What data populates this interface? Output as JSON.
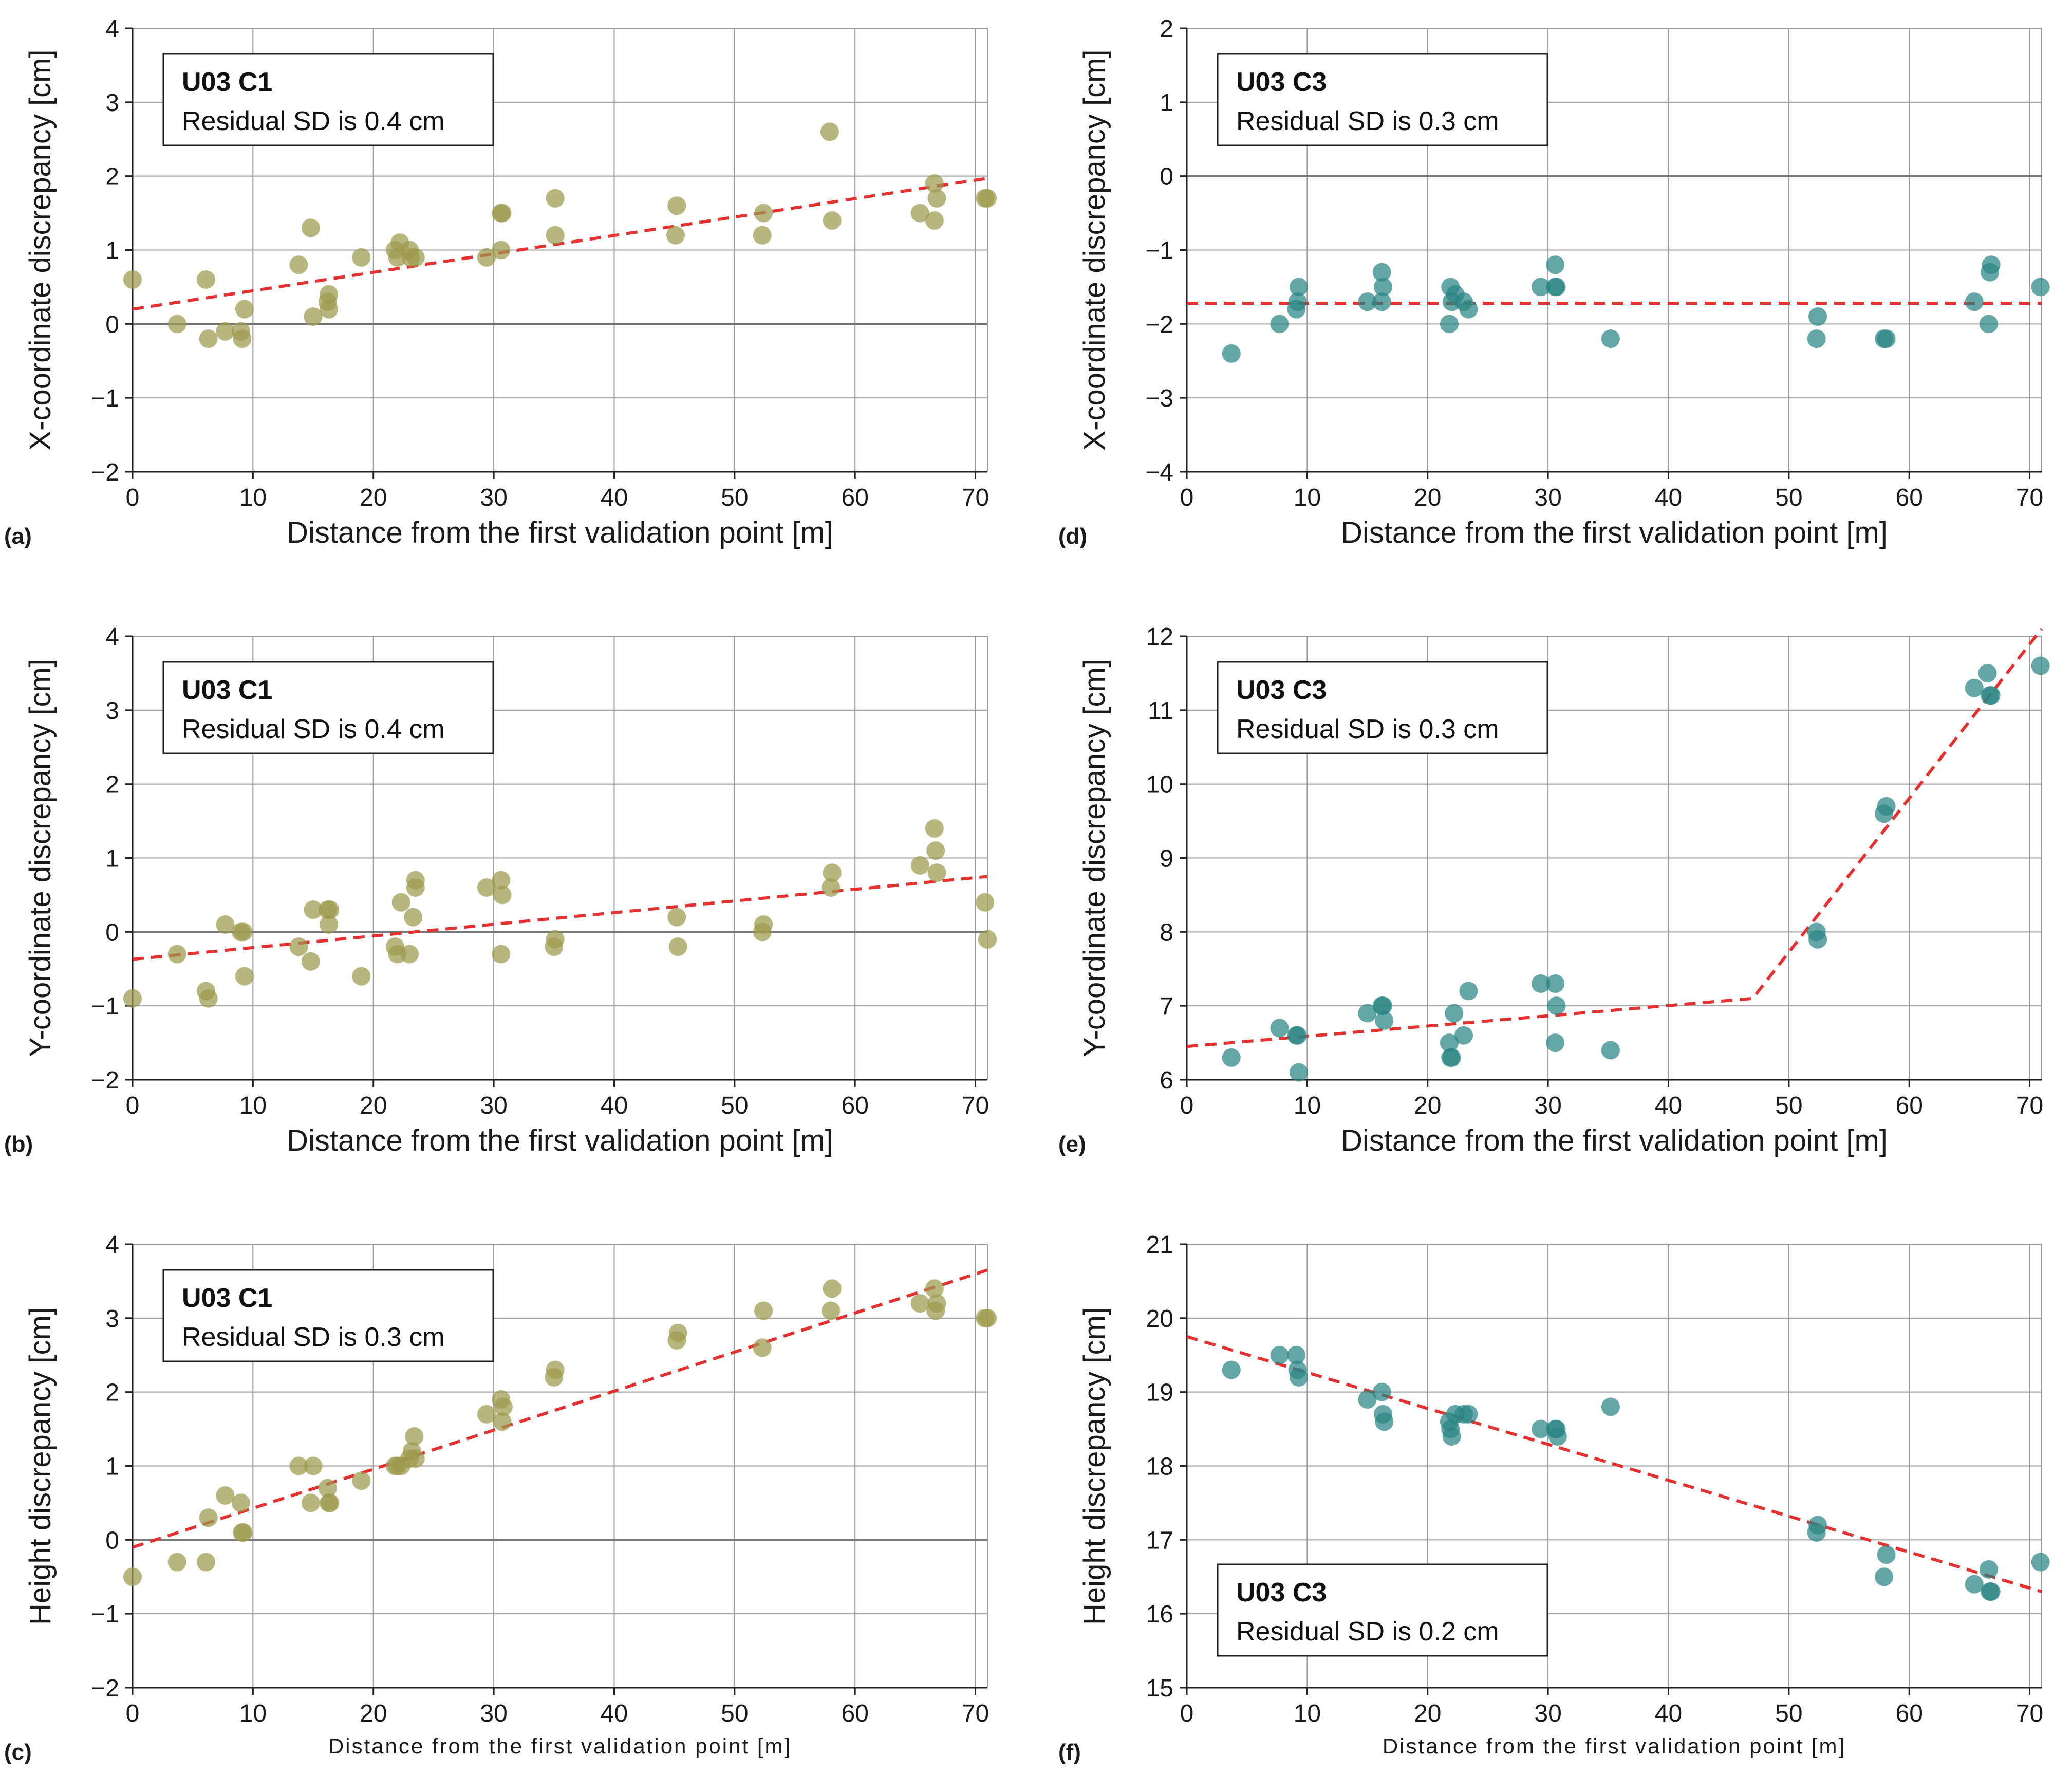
{
  "colors": {
    "olive": "#9c9a4e",
    "teal": "#2a8583",
    "fit": "#e53030"
  },
  "chart_data": [
    {
      "type": "scatter",
      "panel": "(a)",
      "box_title": "U03 C1",
      "box_sub": "Residual SD is 0.4 cm",
      "box_pos": "top-left",
      "xlabel": "Distance from the first validation point [m]",
      "ylabel": "X-coordinate discrepancy [cm]",
      "xlim": [
        0,
        71
      ],
      "ylim": [
        -2,
        4
      ],
      "xticks": [
        0,
        10,
        20,
        30,
        40,
        50,
        60,
        70
      ],
      "yticks": [
        -2,
        -1,
        0,
        1,
        2,
        3,
        4
      ],
      "color": "olive",
      "zero_line": true,
      "small_xlabel": false,
      "fit": [
        [
          0,
          0.2
        ],
        [
          71,
          1.97
        ]
      ],
      "points": [
        [
          0,
          0.6
        ],
        [
          3.7,
          0
        ],
        [
          6.1,
          0.6
        ],
        [
          6.3,
          -0.2
        ],
        [
          7.7,
          -0.1
        ],
        [
          9,
          -0.1
        ],
        [
          9.1,
          -0.2
        ],
        [
          9.3,
          0.2
        ],
        [
          13.8,
          0.8
        ],
        [
          14.8,
          1.3
        ],
        [
          15,
          0.1
        ],
        [
          16.3,
          0.2
        ],
        [
          16.3,
          0.4
        ],
        [
          16.2,
          0.3
        ],
        [
          19,
          0.9
        ],
        [
          21.8,
          1
        ],
        [
          22,
          0.9
        ],
        [
          22.2,
          1.1
        ],
        [
          23,
          1
        ],
        [
          23.1,
          0.9
        ],
        [
          23.5,
          0.9
        ],
        [
          29.4,
          0.9
        ],
        [
          30.6,
          1.5
        ],
        [
          30.7,
          1.5
        ],
        [
          30.6,
          1
        ],
        [
          35.1,
          1.2
        ],
        [
          35.1,
          1.7
        ],
        [
          45.2,
          1.6
        ],
        [
          45.1,
          1.2
        ],
        [
          52.4,
          1.5
        ],
        [
          52.3,
          1.2
        ],
        [
          57.9,
          2.6
        ],
        [
          58.1,
          1.4
        ],
        [
          65.4,
          1.5
        ],
        [
          66.6,
          1.9
        ],
        [
          66.8,
          1.7
        ],
        [
          66.6,
          1.4
        ],
        [
          70.8,
          1.7
        ],
        [
          71,
          1.7
        ]
      ]
    },
    {
      "type": "scatter",
      "panel": "(d)",
      "box_title": "U03 C3",
      "box_sub": "Residual SD is 0.3 cm",
      "box_pos": "top-left",
      "xlabel": "Distance from the first validation point [m]",
      "ylabel": "X-coordinate discrepancy [cm]",
      "xlim": [
        0,
        71
      ],
      "ylim": [
        -4,
        2
      ],
      "xticks": [
        0,
        10,
        20,
        30,
        40,
        50,
        60,
        70
      ],
      "yticks": [
        -4,
        -3,
        -2,
        -1,
        0,
        1,
        2
      ],
      "color": "teal",
      "zero_line": true,
      "small_xlabel": false,
      "fit": [
        [
          0,
          -1.72
        ],
        [
          71,
          -1.72
        ]
      ],
      "points": [
        [
          3.7,
          -2.4
        ],
        [
          7.7,
          -2
        ],
        [
          9.1,
          -1.8
        ],
        [
          9.3,
          -1.5
        ],
        [
          9.2,
          -1.7
        ],
        [
          15,
          -1.7
        ],
        [
          16.2,
          -1.3
        ],
        [
          16.3,
          -1.5
        ],
        [
          16.2,
          -1.7
        ],
        [
          21.8,
          -2
        ],
        [
          21.9,
          -1.5
        ],
        [
          22,
          -1.7
        ],
        [
          22.3,
          -1.6
        ],
        [
          23,
          -1.7
        ],
        [
          23.4,
          -1.8
        ],
        [
          29.4,
          -1.5
        ],
        [
          30.6,
          -1.5
        ],
        [
          30.7,
          -1.5
        ],
        [
          30.6,
          -1.2
        ],
        [
          35.2,
          -2.2
        ],
        [
          52.3,
          -2.2
        ],
        [
          52.4,
          -1.9
        ],
        [
          57.9,
          -2.2
        ],
        [
          58.1,
          -2.2
        ],
        [
          65.4,
          -1.7
        ],
        [
          66.6,
          -2
        ],
        [
          66.7,
          -1.3
        ],
        [
          66.8,
          -1.2
        ],
        [
          70.9,
          -1.5
        ]
      ]
    },
    {
      "type": "scatter",
      "panel": "(b)",
      "box_title": "U03 C1",
      "box_sub": "Residual SD is 0.4 cm",
      "box_pos": "top-left",
      "xlabel": "Distance from the first validation point [m]",
      "ylabel": "Y-coordinate discrepancy [cm]",
      "xlim": [
        0,
        71
      ],
      "ylim": [
        -2,
        4
      ],
      "xticks": [
        0,
        10,
        20,
        30,
        40,
        50,
        60,
        70
      ],
      "yticks": [
        -2,
        -1,
        0,
        1,
        2,
        3,
        4
      ],
      "color": "olive",
      "zero_line": true,
      "small_xlabel": false,
      "fit": [
        [
          0,
          -0.37
        ],
        [
          71,
          0.75
        ]
      ],
      "points": [
        [
          0,
          -0.9
        ],
        [
          3.7,
          -0.3
        ],
        [
          6.1,
          -0.8
        ],
        [
          6.3,
          -0.9
        ],
        [
          7.7,
          0.1
        ],
        [
          9,
          0
        ],
        [
          9.2,
          0
        ],
        [
          9.3,
          -0.6
        ],
        [
          13.8,
          -0.2
        ],
        [
          14.8,
          -0.4
        ],
        [
          15,
          0.3
        ],
        [
          16.2,
          0.3
        ],
        [
          16.4,
          0.3
        ],
        [
          16.3,
          0.1
        ],
        [
          19,
          -0.6
        ],
        [
          21.8,
          -0.2
        ],
        [
          22,
          -0.3
        ],
        [
          22.3,
          0.4
        ],
        [
          23,
          -0.3
        ],
        [
          23.3,
          0.2
        ],
        [
          23.5,
          0.6
        ],
        [
          23.5,
          0.7
        ],
        [
          29.4,
          0.6
        ],
        [
          30.6,
          0.7
        ],
        [
          30.7,
          0.5
        ],
        [
          30.6,
          -0.3
        ],
        [
          35,
          -0.2
        ],
        [
          35.1,
          -0.1
        ],
        [
          45.2,
          0.2
        ],
        [
          45.3,
          -0.2
        ],
        [
          52.4,
          0.1
        ],
        [
          52.3,
          0
        ],
        [
          58.1,
          0.8
        ],
        [
          58,
          0.6
        ],
        [
          65.4,
          0.9
        ],
        [
          66.6,
          1.4
        ],
        [
          66.7,
          1.1
        ],
        [
          66.8,
          0.8
        ],
        [
          70.8,
          0.4
        ],
        [
          71,
          -0.1
        ]
      ]
    },
    {
      "type": "scatter",
      "panel": "(e)",
      "box_title": "U03 C3",
      "box_sub": "Residual SD is 0.3 cm",
      "box_pos": "top-left",
      "xlabel": "Distance from the first validation point [m]",
      "ylabel": "Y-coordinate discrepancy [cm]",
      "xlim": [
        0,
        71
      ],
      "ylim": [
        6,
        12
      ],
      "xticks": [
        0,
        10,
        20,
        30,
        40,
        50,
        60,
        70
      ],
      "yticks": [
        6,
        7,
        8,
        9,
        10,
        11,
        12
      ],
      "color": "teal",
      "zero_line": false,
      "small_xlabel": false,
      "fit": [
        [
          0,
          6.45
        ],
        [
          47,
          7.1
        ],
        [
          71,
          12.1
        ]
      ],
      "points": [
        [
          3.7,
          6.3
        ],
        [
          7.7,
          6.7
        ],
        [
          9.1,
          6.6
        ],
        [
          9.2,
          6.6
        ],
        [
          9.3,
          6.1
        ],
        [
          15,
          6.9
        ],
        [
          16.2,
          7
        ],
        [
          16.3,
          7
        ],
        [
          16.4,
          6.8
        ],
        [
          21.8,
          6.5
        ],
        [
          21.9,
          6.3
        ],
        [
          22,
          6.3
        ],
        [
          22.2,
          6.9
        ],
        [
          23,
          6.6
        ],
        [
          23.4,
          7.2
        ],
        [
          29.4,
          7.3
        ],
        [
          30.6,
          7.3
        ],
        [
          30.7,
          7
        ],
        [
          30.6,
          6.5
        ],
        [
          35.2,
          6.4
        ],
        [
          52.3,
          8
        ],
        [
          52.4,
          7.9
        ],
        [
          57.9,
          9.6
        ],
        [
          58.1,
          9.7
        ],
        [
          65.4,
          11.3
        ],
        [
          66.5,
          11.5
        ],
        [
          66.7,
          11.2
        ],
        [
          66.8,
          11.2
        ],
        [
          70.9,
          11.6
        ]
      ]
    },
    {
      "type": "scatter",
      "panel": "(c)",
      "box_title": "U03 C1",
      "box_sub": "Residual SD is 0.3 cm",
      "box_pos": "top-left",
      "xlabel": "Distance from the first validation point [m]",
      "ylabel": "Height discrepancy [cm]",
      "xlim": [
        0,
        71
      ],
      "ylim": [
        -2,
        4
      ],
      "xticks": [
        0,
        10,
        20,
        30,
        40,
        50,
        60,
        70
      ],
      "yticks": [
        -2,
        -1,
        0,
        1,
        2,
        3,
        4
      ],
      "color": "olive",
      "zero_line": true,
      "small_xlabel": true,
      "fit": [
        [
          0,
          -0.1
        ],
        [
          71,
          3.65
        ]
      ],
      "points": [
        [
          0,
          -0.5
        ],
        [
          3.7,
          -0.3
        ],
        [
          6.1,
          -0.3
        ],
        [
          6.3,
          0.3
        ],
        [
          7.7,
          0.6
        ],
        [
          9,
          0.5
        ],
        [
          9.1,
          0.1
        ],
        [
          9.2,
          0.1
        ],
        [
          13.8,
          1
        ],
        [
          14.8,
          0.5
        ],
        [
          15,
          1
        ],
        [
          16.2,
          0.7
        ],
        [
          16.3,
          0.5
        ],
        [
          16.4,
          0.5
        ],
        [
          19,
          0.8
        ],
        [
          21.8,
          1
        ],
        [
          22,
          1
        ],
        [
          22.3,
          1
        ],
        [
          23,
          1.1
        ],
        [
          23.2,
          1.2
        ],
        [
          23.4,
          1.4
        ],
        [
          23.5,
          1.1
        ],
        [
          29.4,
          1.7
        ],
        [
          30.6,
          1.9
        ],
        [
          30.7,
          1.6
        ],
        [
          30.8,
          1.8
        ],
        [
          35,
          2.2
        ],
        [
          35.1,
          2.3
        ],
        [
          45.2,
          2.7
        ],
        [
          45.3,
          2.8
        ],
        [
          52.4,
          3.1
        ],
        [
          52.3,
          2.6
        ],
        [
          58.1,
          3.4
        ],
        [
          58,
          3.1
        ],
        [
          65.4,
          3.2
        ],
        [
          66.6,
          3.4
        ],
        [
          66.7,
          3.1
        ],
        [
          66.8,
          3.2
        ],
        [
          70.8,
          3
        ],
        [
          71,
          3
        ]
      ]
    },
    {
      "type": "scatter",
      "panel": "(f)",
      "box_title": "U03 C3",
      "box_sub": "Residual SD is 0.2 cm",
      "box_pos": "bottom-left",
      "xlabel": "Distance from the first validation point [m]",
      "ylabel": "Height discrepancy [cm]",
      "xlim": [
        0,
        71
      ],
      "ylim": [
        15,
        21
      ],
      "xticks": [
        0,
        10,
        20,
        30,
        40,
        50,
        60,
        70
      ],
      "yticks": [
        15,
        16,
        17,
        18,
        19,
        20,
        21
      ],
      "color": "teal",
      "zero_line": false,
      "small_xlabel": true,
      "fit": [
        [
          0,
          19.75
        ],
        [
          71,
          16.3
        ]
      ],
      "points": [
        [
          3.7,
          19.3
        ],
        [
          7.7,
          19.5
        ],
        [
          9.1,
          19.5
        ],
        [
          9.2,
          19.3
        ],
        [
          9.3,
          19.2
        ],
        [
          15,
          18.9
        ],
        [
          16.2,
          19
        ],
        [
          16.3,
          18.7
        ],
        [
          16.4,
          18.6
        ],
        [
          21.8,
          18.6
        ],
        [
          21.9,
          18.5
        ],
        [
          22,
          18.4
        ],
        [
          22.3,
          18.7
        ],
        [
          23,
          18.7
        ],
        [
          23.4,
          18.7
        ],
        [
          29.4,
          18.5
        ],
        [
          30.6,
          18.5
        ],
        [
          30.7,
          18.5
        ],
        [
          30.8,
          18.4
        ],
        [
          35.2,
          18.8
        ],
        [
          52.3,
          17.1
        ],
        [
          52.4,
          17.2
        ],
        [
          57.9,
          16.5
        ],
        [
          58.1,
          16.8
        ],
        [
          65.4,
          16.4
        ],
        [
          66.6,
          16.6
        ],
        [
          66.7,
          16.3
        ],
        [
          66.8,
          16.3
        ],
        [
          70.9,
          16.7
        ]
      ]
    }
  ]
}
